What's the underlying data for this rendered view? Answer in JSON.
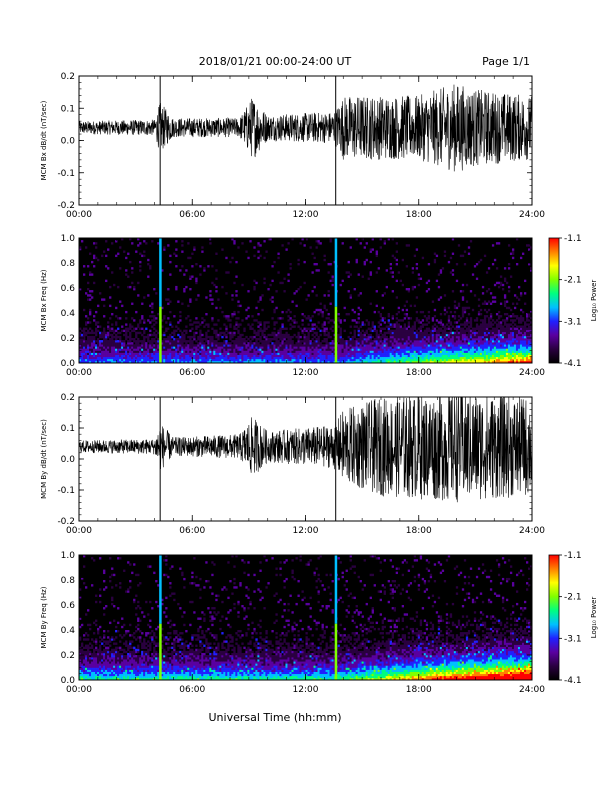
{
  "header": {
    "title": "2018/01/21  00:00-24:00 UT",
    "page": "Page 1/1"
  },
  "xlabel": "Universal Time (hh:mm)",
  "colorbar": {
    "label": "Log₁₀ Power",
    "ticks": [
      "-1.1",
      "-2.1",
      "-3.1",
      "-4.1"
    ],
    "colors": [
      "#000000",
      "#2a0040",
      "#5a00a0",
      "#2020ff",
      "#00c0ff",
      "#00ff80",
      "#80ff00",
      "#ffff00",
      "#ff8000",
      "#ff0000"
    ]
  },
  "chart_data": [
    {
      "type": "line",
      "ylabel": "MCM Bx dB/dt (nT/sec)",
      "x_ticks": [
        "00:00",
        "06:00",
        "12:00",
        "18:00",
        "24:00"
      ],
      "y_ticks": [
        "0.2",
        "0.1",
        "0.0",
        "-0.1",
        "-0.2"
      ],
      "xlim": [
        0,
        24
      ],
      "ylim": [
        -0.2,
        0.2
      ],
      "baseline": 0.04,
      "noise_envelope": [
        [
          0,
          0.02
        ],
        [
          4,
          0.025
        ],
        [
          4.3,
          0.08
        ],
        [
          5,
          0.03
        ],
        [
          8.5,
          0.03
        ],
        [
          9.2,
          0.1
        ],
        [
          10,
          0.04
        ],
        [
          13.5,
          0.05
        ],
        [
          14,
          0.1
        ],
        [
          16,
          0.1
        ],
        [
          18,
          0.1
        ],
        [
          20,
          0.14
        ],
        [
          21,
          0.12
        ],
        [
          24,
          0.1
        ]
      ],
      "spikes": [
        {
          "x": 4.3,
          "y": -0.2
        },
        {
          "x": 13.6,
          "y": -0.2
        }
      ]
    },
    {
      "type": "heatmap",
      "ylabel": "MCM Bx Freq (Hz)",
      "x_ticks": [
        "00:00",
        "06:00",
        "12:00",
        "18:00",
        "24:00"
      ],
      "y_ticks": [
        "1.0",
        "0.8",
        "0.6",
        "0.4",
        "0.2",
        "0.0"
      ],
      "xlim": [
        0,
        24
      ],
      "ylim": [
        0,
        1.0
      ],
      "zlim": [
        -4.1,
        -1.1
      ],
      "bright_lines": [
        4.3,
        13.6
      ]
    },
    {
      "type": "line",
      "ylabel": "MCM By dB/dt (nT/sec)",
      "x_ticks": [
        "00:00",
        "06:00",
        "12:00",
        "18:00",
        "24:00"
      ],
      "y_ticks": [
        "0.2",
        "0.1",
        "0.0",
        "-0.1",
        "-0.2"
      ],
      "xlim": [
        0,
        24
      ],
      "ylim": [
        -0.2,
        0.2
      ],
      "baseline": 0.04,
      "noise_envelope": [
        [
          0,
          0.02
        ],
        [
          4,
          0.025
        ],
        [
          4.3,
          0.08
        ],
        [
          5,
          0.03
        ],
        [
          8.5,
          0.04
        ],
        [
          9.2,
          0.1
        ],
        [
          10,
          0.05
        ],
        [
          13.5,
          0.07
        ],
        [
          14,
          0.12
        ],
        [
          16,
          0.16
        ],
        [
          18,
          0.17
        ],
        [
          20,
          0.18
        ],
        [
          22,
          0.17
        ],
        [
          24,
          0.16
        ]
      ],
      "spikes": [
        {
          "x": 4.3,
          "y": -0.2
        },
        {
          "x": 13.6,
          "y": -0.2
        }
      ]
    },
    {
      "type": "heatmap",
      "ylabel": "MCM By Freq (Hz)",
      "x_ticks": [
        "00:00",
        "06:00",
        "12:00",
        "18:00",
        "24:00"
      ],
      "y_ticks": [
        "1.0",
        "0.8",
        "0.6",
        "0.4",
        "0.2",
        "0.0"
      ],
      "xlim": [
        0,
        24
      ],
      "ylim": [
        0,
        1.0
      ],
      "zlim": [
        -4.1,
        -1.1
      ],
      "bright_lines": [
        4.3,
        13.6
      ]
    }
  ]
}
